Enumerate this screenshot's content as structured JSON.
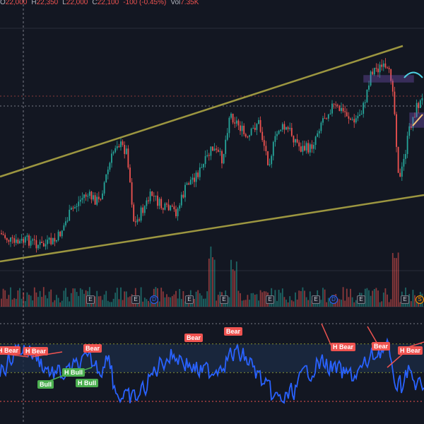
{
  "legend": {
    "open_label": "O",
    "open": "22,000",
    "high_label": "H",
    "high": "22,350",
    "low_label": "L",
    "low": "22,000",
    "close_label": "C",
    "close": "22,100",
    "change": "-100 (-0.45%)",
    "vol_label": "Vol",
    "vol": "7.35K"
  },
  "colors": {
    "background": "#131722",
    "candle_up": "#26a69a",
    "candle_down": "#ef5350",
    "trendline": "#9c9640",
    "rsi_line": "#2962ff",
    "rsi_band": "#1b2a44",
    "bear_label": "#ef5350",
    "bull_label": "#4caf50",
    "zone_box": "#7e57c2"
  },
  "divergence_labels": [
    {
      "text": "H Bear",
      "kind": "bear"
    },
    {
      "text": "H Bear",
      "kind": "bear"
    },
    {
      "text": "Bull",
      "kind": "bull"
    },
    {
      "text": "H Bull",
      "kind": "bull"
    },
    {
      "text": "H Bull",
      "kind": "bull"
    },
    {
      "text": "Bear",
      "kind": "bear"
    },
    {
      "text": "Bear",
      "kind": "bear"
    },
    {
      "text": "Bear",
      "kind": "bear"
    },
    {
      "text": "H Bear",
      "kind": "bear"
    },
    {
      "text": "Bear",
      "kind": "bear"
    },
    {
      "text": "H Bear",
      "kind": "bear"
    }
  ],
  "event_markers": [
    {
      "letter": "E",
      "kind": "earnings"
    },
    {
      "letter": "E",
      "kind": "earnings"
    },
    {
      "letter": "D",
      "kind": "dividend"
    },
    {
      "letter": "E",
      "kind": "earnings"
    },
    {
      "letter": "E",
      "kind": "earnings"
    },
    {
      "letter": "E",
      "kind": "earnings"
    },
    {
      "letter": "E",
      "kind": "earnings"
    },
    {
      "letter": "D",
      "kind": "dividend"
    },
    {
      "letter": "E",
      "kind": "earnings"
    },
    {
      "letter": "E",
      "kind": "earnings"
    },
    {
      "letter": "S",
      "kind": "split"
    }
  ]
}
